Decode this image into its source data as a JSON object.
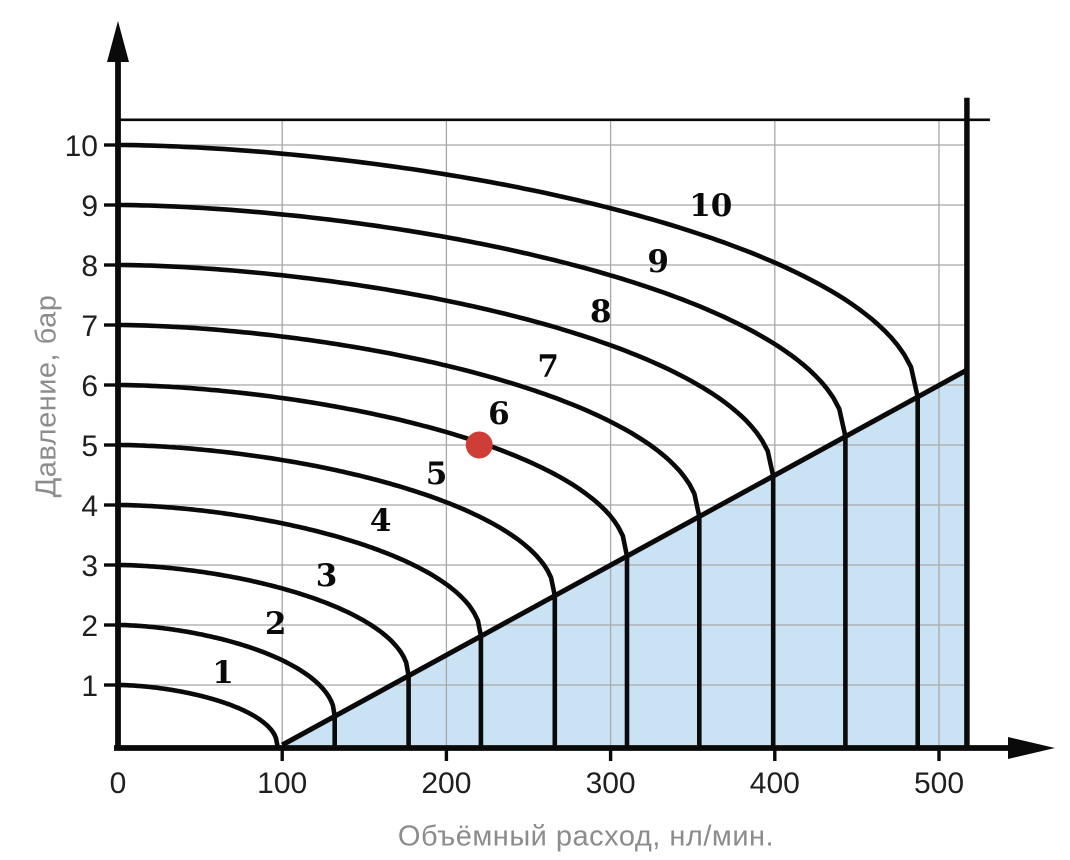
{
  "chart_data": {
    "type": "line",
    "title": "",
    "xlabel": "Объёмный расход, нл/мин.",
    "ylabel": "Давление, бар",
    "x_unit": "нл/мин",
    "y_unit": "бар",
    "xlim": [
      0,
      545
    ],
    "ylim": [
      0,
      11
    ],
    "x_ticks": [
      0,
      100,
      200,
      300,
      400,
      500
    ],
    "y_ticks": [
      1,
      2,
      3,
      4,
      5,
      6,
      7,
      8,
      9,
      10
    ],
    "grid": true,
    "legend": "none",
    "curves": [
      {
        "label": "1",
        "inlet_pressure_bar": 1,
        "max_flow_nl_min": 97,
        "label_pos": [
          64,
          1.03
        ]
      },
      {
        "label": "2",
        "inlet_pressure_bar": 2,
        "max_flow_nl_min": 132,
        "label_pos": [
          96,
          1.85
        ]
      },
      {
        "label": "3",
        "inlet_pressure_bar": 3,
        "max_flow_nl_min": 177,
        "label_pos": [
          127,
          2.65
        ]
      },
      {
        "label": "4",
        "inlet_pressure_bar": 4,
        "max_flow_nl_min": 221,
        "label_pos": [
          160,
          3.57
        ]
      },
      {
        "label": "5",
        "inlet_pressure_bar": 5,
        "max_flow_nl_min": 266,
        "label_pos": [
          194,
          4.35
        ]
      },
      {
        "label": "6",
        "inlet_pressure_bar": 6,
        "max_flow_nl_min": 310,
        "label_pos": [
          232,
          5.35
        ]
      },
      {
        "label": "7",
        "inlet_pressure_bar": 7,
        "max_flow_nl_min": 354,
        "label_pos": [
          262,
          6.13
        ]
      },
      {
        "label": "8",
        "inlet_pressure_bar": 8,
        "max_flow_nl_min": 399,
        "label_pos": [
          294,
          7.05
        ]
      },
      {
        "label": "9",
        "inlet_pressure_bar": 9,
        "max_flow_nl_min": 443,
        "label_pos": [
          329,
          7.88
        ]
      },
      {
        "label": "10",
        "inlet_pressure_bar": 10,
        "max_flow_nl_min": 487,
        "label_pos": [
          361,
          8.82
        ]
      }
    ],
    "flow_limit_line": {
      "from": [
        100,
        0
      ],
      "to": [
        517,
        6.25
      ]
    },
    "saturation_region": {
      "vertices": [
        [
          100,
          0
        ],
        [
          517,
          6.25
        ],
        [
          517,
          0
        ]
      ],
      "color": "#c9e2f4"
    },
    "right_boundary_flow": 517,
    "top_boundary_pressure": 10.42,
    "operating_point": {
      "flow": 220,
      "pressure": 5,
      "color": "#cf3e36"
    },
    "colors": {
      "curve": "#0a0a0a",
      "grid": "#a8a8a8",
      "axis": "#0a0a0a",
      "axis_title": "#8c8c8c",
      "tick_label": "#1f1f1f",
      "background": "#ffffff"
    }
  }
}
